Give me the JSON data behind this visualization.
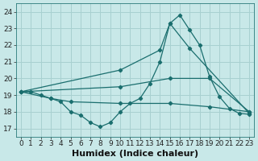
{
  "xlabel": "Humidex (Indice chaleur)",
  "xlim": [
    -0.5,
    23.5
  ],
  "ylim": [
    16.5,
    24.5
  ],
  "yticks": [
    17,
    18,
    19,
    20,
    21,
    22,
    23,
    24
  ],
  "xticks": [
    0,
    1,
    2,
    3,
    4,
    5,
    6,
    7,
    8,
    9,
    10,
    11,
    12,
    13,
    14,
    15,
    16,
    17,
    18,
    19,
    20,
    21,
    22,
    23
  ],
  "bg_color": "#c8e8e8",
  "grid_color": "#a8d0d0",
  "line_color": "#1a6e6e",
  "series": [
    {
      "x": [
        0,
        1,
        2,
        3,
        4,
        5,
        6,
        7,
        8,
        9,
        10,
        11,
        12,
        13,
        14,
        15,
        16,
        17,
        18,
        19,
        20,
        21,
        22,
        23
      ],
      "y": [
        19.2,
        19.2,
        19.0,
        18.8,
        18.6,
        18.0,
        17.8,
        17.35,
        17.1,
        17.35,
        18.0,
        18.5,
        18.8,
        19.7,
        21.0,
        23.3,
        23.8,
        22.9,
        22.0,
        20.1,
        18.9,
        18.2,
        17.9,
        17.85
      ]
    },
    {
      "x": [
        0,
        10,
        14,
        15,
        17,
        23
      ],
      "y": [
        19.2,
        20.5,
        21.7,
        23.3,
        21.8,
        17.9
      ]
    },
    {
      "x": [
        0,
        10,
        15,
        19,
        23
      ],
      "y": [
        19.2,
        19.5,
        20.0,
        20.0,
        18.0
      ]
    },
    {
      "x": [
        0,
        3,
        5,
        10,
        15,
        19,
        23
      ],
      "y": [
        19.2,
        18.8,
        18.6,
        18.5,
        18.5,
        18.3,
        18.0
      ]
    }
  ],
  "xlabel_fontsize": 8,
  "tick_fontsize": 6.5,
  "figwidth": 3.2,
  "figheight": 2.0,
  "dpi": 100
}
